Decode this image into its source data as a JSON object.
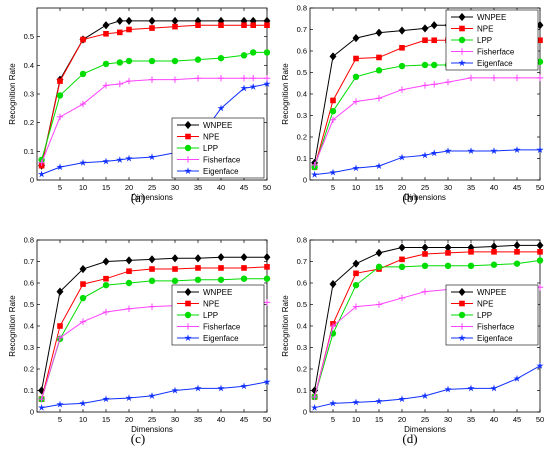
{
  "panel_labels": [
    "(a)",
    "(b)",
    "(c)",
    "(d)"
  ],
  "colors": {
    "WNPEE": "#000000",
    "NPE": "#ff0000",
    "LPP": "#00dd00",
    "Fisherface": "#ff44ff",
    "Eigenface": "#1030ff"
  },
  "markers": {
    "WNPEE": "diamond",
    "NPE": "square",
    "LPP": "circle",
    "Fisherface": "plus",
    "Eigenface": "star"
  },
  "chart_data": [
    {
      "type": "line",
      "xlabel": "Dimensions",
      "ylabel": "Recognition Rate",
      "xlim": [
        0,
        50
      ],
      "ylim": [
        0,
        0.6
      ],
      "xticks": [
        5,
        10,
        15,
        20,
        25,
        30,
        35,
        40,
        45,
        50
      ],
      "yticks": [
        0,
        0.1,
        0.2,
        0.3,
        0.4,
        0.5
      ],
      "legend_position": "bottom-right",
      "x": [
        1,
        5,
        10,
        15,
        18,
        20,
        25,
        30,
        35,
        40,
        45,
        47,
        50
      ],
      "series": [
        {
          "name": "WNPEE",
          "values": [
            0.05,
            0.35,
            0.49,
            0.54,
            0.555,
            0.555,
            0.555,
            0.555,
            0.555,
            0.555,
            0.555,
            0.555,
            0.555
          ]
        },
        {
          "name": "NPE",
          "values": [
            0.05,
            0.345,
            0.49,
            0.51,
            0.515,
            0.525,
            0.53,
            0.535,
            0.54,
            0.54,
            0.54,
            0.54,
            0.54
          ]
        },
        {
          "name": "LPP",
          "values": [
            0.07,
            0.295,
            0.37,
            0.405,
            0.41,
            0.415,
            0.415,
            0.415,
            0.42,
            0.425,
            0.435,
            0.445,
            0.445
          ]
        },
        {
          "name": "Fisherface",
          "values": [
            0.06,
            0.22,
            0.265,
            0.33,
            0.335,
            0.345,
            0.35,
            0.35,
            0.355,
            0.355,
            0.355,
            0.355,
            0.355
          ]
        },
        {
          "name": "Eigenface",
          "values": [
            0.02,
            0.045,
            0.06,
            0.065,
            0.07,
            0.075,
            0.08,
            0.095,
            0.14,
            0.25,
            0.32,
            0.325,
            0.335
          ]
        }
      ],
      "legend": [
        "WNPEE",
        "NPE",
        "LPP",
        "Fisherface",
        "Eigenface"
      ]
    },
    {
      "type": "line",
      "xlabel": "Dimensions",
      "ylabel": "Recognition Rate",
      "xlim": [
        0,
        50
      ],
      "ylim": [
        0,
        0.8
      ],
      "xticks": [
        5,
        10,
        15,
        20,
        25,
        30,
        35,
        40,
        45,
        50
      ],
      "yticks": [
        0,
        0.1,
        0.2,
        0.3,
        0.4,
        0.5,
        0.6,
        0.7,
        0.8
      ],
      "legend_position": "top-right",
      "x": [
        1,
        5,
        10,
        15,
        20,
        25,
        27,
        30,
        35,
        40,
        45,
        50
      ],
      "series": [
        {
          "name": "WNPEE",
          "values": [
            0.08,
            0.575,
            0.66,
            0.685,
            0.695,
            0.705,
            0.72,
            0.72,
            0.72,
            0.72,
            0.72,
            0.72
          ]
        },
        {
          "name": "NPE",
          "values": [
            0.06,
            0.37,
            0.565,
            0.57,
            0.615,
            0.65,
            0.65,
            0.65,
            0.65,
            0.65,
            0.65,
            0.65
          ]
        },
        {
          "name": "LPP",
          "values": [
            0.06,
            0.32,
            0.48,
            0.51,
            0.53,
            0.535,
            0.535,
            0.535,
            0.55,
            0.55,
            0.55,
            0.55
          ]
        },
        {
          "name": "Fisherface",
          "values": [
            0.07,
            0.28,
            0.365,
            0.38,
            0.42,
            0.44,
            0.445,
            0.455,
            0.475,
            0.475,
            0.475,
            0.475
          ]
        },
        {
          "name": "Eigenface",
          "values": [
            0.025,
            0.035,
            0.055,
            0.065,
            0.105,
            0.115,
            0.125,
            0.135,
            0.135,
            0.135,
            0.14,
            0.14
          ]
        }
      ],
      "legend": [
        "WNPEE",
        "NPE",
        "LPP",
        "Fisherface",
        "Eigenface"
      ]
    },
    {
      "type": "line",
      "xlabel": "Dimensions",
      "ylabel": "Recognition Rate",
      "xlim": [
        0,
        50
      ],
      "ylim": [
        0,
        0.8
      ],
      "xticks": [
        5,
        10,
        15,
        20,
        25,
        30,
        35,
        40,
        45,
        50
      ],
      "yticks": [
        0,
        0.1,
        0.2,
        0.3,
        0.4,
        0.5,
        0.6,
        0.7,
        0.8
      ],
      "legend_position": "center-right",
      "x": [
        1,
        5,
        10,
        15,
        20,
        25,
        30,
        35,
        40,
        45,
        50
      ],
      "series": [
        {
          "name": "WNPEE",
          "values": [
            0.1,
            0.56,
            0.665,
            0.7,
            0.705,
            0.71,
            0.715,
            0.715,
            0.72,
            0.72,
            0.72
          ]
        },
        {
          "name": "NPE",
          "values": [
            0.06,
            0.4,
            0.595,
            0.62,
            0.655,
            0.665,
            0.665,
            0.67,
            0.67,
            0.67,
            0.675
          ]
        },
        {
          "name": "LPP",
          "values": [
            0.06,
            0.34,
            0.53,
            0.59,
            0.6,
            0.61,
            0.61,
            0.615,
            0.615,
            0.62,
            0.62
          ]
        },
        {
          "name": "Fisherface",
          "values": [
            0.06,
            0.345,
            0.42,
            0.465,
            0.48,
            0.49,
            0.495,
            0.5,
            0.505,
            0.51,
            0.51
          ]
        },
        {
          "name": "Eigenface",
          "values": [
            0.02,
            0.035,
            0.04,
            0.06,
            0.065,
            0.075,
            0.1,
            0.11,
            0.11,
            0.12,
            0.14
          ]
        }
      ],
      "legend": [
        "WNPEE",
        "NPE",
        "LPP",
        "Fisherface",
        "Eigenface"
      ]
    },
    {
      "type": "line",
      "xlabel": "Dimensions",
      "ylabel": "Recognition Rate",
      "xlim": [
        0,
        50
      ],
      "ylim": [
        0,
        0.8
      ],
      "xticks": [
        5,
        10,
        15,
        20,
        25,
        30,
        35,
        40,
        45,
        50
      ],
      "yticks": [
        0,
        0.1,
        0.2,
        0.3,
        0.4,
        0.5,
        0.6,
        0.7,
        0.8
      ],
      "legend_position": "center-right",
      "x": [
        1,
        5,
        10,
        15,
        20,
        25,
        30,
        35,
        40,
        45,
        50
      ],
      "series": [
        {
          "name": "WNPEE",
          "values": [
            0.1,
            0.595,
            0.69,
            0.74,
            0.765,
            0.765,
            0.765,
            0.765,
            0.77,
            0.775,
            0.775
          ]
        },
        {
          "name": "NPE",
          "values": [
            0.07,
            0.41,
            0.645,
            0.665,
            0.71,
            0.735,
            0.74,
            0.745,
            0.745,
            0.745,
            0.745
          ]
        },
        {
          "name": "LPP",
          "values": [
            0.07,
            0.365,
            0.59,
            0.675,
            0.675,
            0.68,
            0.68,
            0.68,
            0.685,
            0.69,
            0.705
          ]
        },
        {
          "name": "Fisherface",
          "values": [
            0.07,
            0.4,
            0.49,
            0.5,
            0.53,
            0.56,
            0.57,
            0.57,
            0.57,
            0.575,
            0.58
          ]
        },
        {
          "name": "Eigenface",
          "values": [
            0.02,
            0.04,
            0.045,
            0.05,
            0.06,
            0.075,
            0.105,
            0.11,
            0.11,
            0.155,
            0.215
          ]
        }
      ],
      "legend": [
        "WNPEE",
        "NPE",
        "LPP",
        "Fisherface",
        "Eigenface"
      ]
    }
  ]
}
